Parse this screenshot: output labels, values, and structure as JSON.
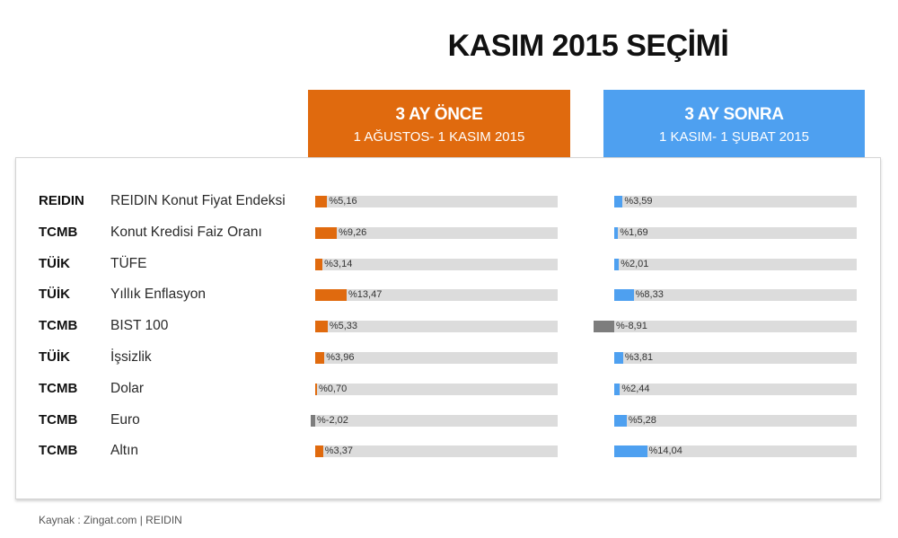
{
  "title": "KASIM 2015 SEÇİMİ",
  "colors": {
    "before": "#e06a0e",
    "after": "#4ea0f0",
    "negative": "#7d7d7d",
    "track": "#dcdcdc"
  },
  "columns": {
    "before": {
      "title": "3 AY ÖNCE",
      "subtitle": "1 AĞUSTOS- 1 KASIM 2015"
    },
    "after": {
      "title": "3 AY SONRA",
      "subtitle": "1 KASIM- 1 ŞUBAT 2015"
    }
  },
  "chart_data": {
    "type": "bar",
    "title": "KASIM 2015 SEÇİMİ",
    "series": [
      {
        "name": "3 AY ÖNCE",
        "values": [
          5.16,
          9.26,
          3.14,
          13.47,
          5.33,
          3.96,
          0.7,
          -2.02,
          3.37
        ]
      },
      {
        "name": "3 AY SONRA",
        "values": [
          3.59,
          1.69,
          2.01,
          8.33,
          -8.91,
          3.81,
          2.44,
          5.28,
          14.04
        ]
      }
    ],
    "rows": [
      {
        "source": "REIDIN",
        "label": "REIDIN Konut Fiyat Endeksi",
        "before": 5.16,
        "before_text": "%5,16",
        "after": 3.59,
        "after_text": "%3,59"
      },
      {
        "source": "TCMB",
        "label": "Konut Kredisi Faiz Oranı",
        "before": 9.26,
        "before_text": "%9,26",
        "after": 1.69,
        "after_text": "%1,69"
      },
      {
        "source": "TÜİK",
        "label": "TÜFE",
        "before": 3.14,
        "before_text": "%3,14",
        "after": 2.01,
        "after_text": "%2,01"
      },
      {
        "source": "TÜİK",
        "label": "Yıllık Enflasyon",
        "before": 13.47,
        "before_text": "%13,47",
        "after": 8.33,
        "after_text": "%8,33"
      },
      {
        "source": "TCMB",
        "label": "BIST 100",
        "before": 5.33,
        "before_text": "%5,33",
        "after": -8.91,
        "after_text": "%-8,91"
      },
      {
        "source": "TÜİK",
        "label": "İşsizlik",
        "before": 3.96,
        "before_text": "%3,96",
        "after": 3.81,
        "after_text": "%3,81"
      },
      {
        "source": "TCMB",
        "label": "Dolar",
        "before": 0.7,
        "before_text": "%0,70",
        "after": 2.44,
        "after_text": "%2,44"
      },
      {
        "source": "TCMB",
        "label": "Euro",
        "before": -2.02,
        "before_text": "%-2,02",
        "after": 5.28,
        "after_text": "%5,28"
      },
      {
        "source": "TCMB",
        "label": "Altın",
        "before": 3.37,
        "before_text": "%3,37",
        "after": 14.04,
        "after_text": "%14,04"
      }
    ]
  },
  "footer": "Kaynak : Zingat.com | REIDIN"
}
